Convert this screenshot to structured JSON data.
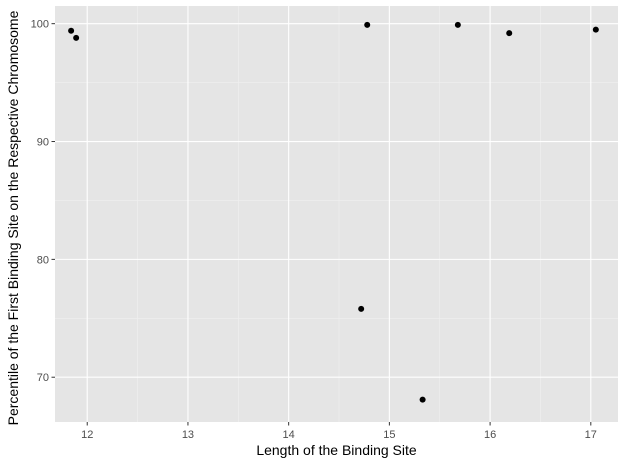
{
  "chart_data": {
    "type": "scatter",
    "title": "",
    "xlabel": "Length of the Binding Site",
    "ylabel": "Percentile of the First Binding Site on the Respective Chromosome",
    "xlim": [
      11.68,
      17.27
    ],
    "ylim": [
      66.2,
      101.5
    ],
    "x_ticks": [
      12,
      13,
      14,
      15,
      16,
      17
    ],
    "y_ticks": [
      70,
      80,
      90,
      100
    ],
    "x_tick_labels": [
      "12",
      "13",
      "14",
      "15",
      "16",
      "17"
    ],
    "y_tick_labels": [
      "70",
      "80",
      "90",
      "100"
    ],
    "grid": true,
    "legend": "none",
    "points": [
      {
        "x": 11.84,
        "y": 99.4
      },
      {
        "x": 11.89,
        "y": 98.8
      },
      {
        "x": 14.72,
        "y": 75.8
      },
      {
        "x": 14.78,
        "y": 99.9
      },
      {
        "x": 15.33,
        "y": 68.1
      },
      {
        "x": 15.68,
        "y": 99.9
      },
      {
        "x": 16.19,
        "y": 99.2
      },
      {
        "x": 17.05,
        "y": 99.5
      }
    ],
    "colors": {
      "panel": "#e5e5e5",
      "grid_major": "#ffffff",
      "grid_minor": "#f0f0f0",
      "point": "#000000",
      "tick": "#333333"
    }
  }
}
